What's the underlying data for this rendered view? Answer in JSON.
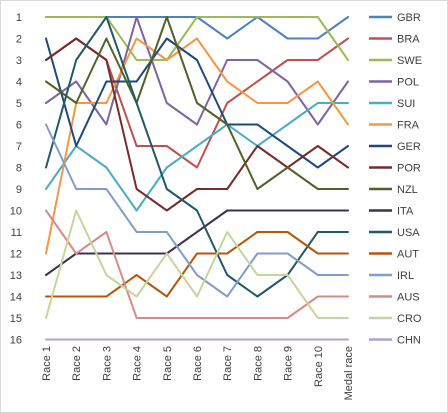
{
  "chart_data": {
    "type": "line",
    "title": "",
    "xlabel": "",
    "ylabel": "",
    "x": [
      "Race 1",
      "Race 2",
      "Race 3",
      "Race 4",
      "Race 5",
      "Race 6",
      "Race 7",
      "Race 8",
      "Race 9",
      "Race 10",
      "Medal race"
    ],
    "ylim": [
      1,
      16
    ],
    "y_ticks": [
      "1",
      "2",
      "3",
      "4",
      "5",
      "6",
      "7",
      "8",
      "9",
      "10",
      "11",
      "12",
      "13",
      "14",
      "15",
      "16"
    ],
    "y_inverted": true,
    "grid": false,
    "legend_position": "right",
    "series": [
      {
        "name": "GBR",
        "color": "#4f81bd",
        "values": [
          1,
          1,
          1,
          1,
          1,
          1,
          2,
          1,
          2,
          2,
          1
        ]
      },
      {
        "name": "BRA",
        "color": "#c0504d",
        "values": [
          3,
          2,
          3,
          7,
          7,
          8,
          5,
          4,
          3,
          3,
          2
        ]
      },
      {
        "name": "SWE",
        "color": "#9bbb59",
        "values": [
          1,
          1,
          1,
          3,
          3,
          1,
          1,
          1,
          1,
          1,
          3
        ]
      },
      {
        "name": "POL",
        "color": "#8064a2",
        "values": [
          5,
          4,
          6,
          1,
          5,
          6,
          3,
          3,
          4,
          6,
          4
        ]
      },
      {
        "name": "SUI",
        "color": "#4bacc6",
        "values": [
          9,
          7,
          8,
          10,
          8,
          7,
          6,
          7,
          6,
          5,
          5
        ]
      },
      {
        "name": "FRA",
        "color": "#f79646",
        "values": [
          12,
          5,
          5,
          2,
          3,
          2,
          4,
          5,
          5,
          4,
          6
        ]
      },
      {
        "name": "GER",
        "color": "#1f497d",
        "values": [
          2,
          7,
          4,
          4,
          2,
          3,
          6,
          6,
          7,
          8,
          7
        ]
      },
      {
        "name": "POR",
        "color": "#772c2a",
        "values": [
          3,
          2,
          3,
          9,
          10,
          9,
          9,
          7,
          8,
          7,
          8
        ]
      },
      {
        "name": "NZL",
        "color": "#4f6228",
        "values": [
          4,
          5,
          2,
          5,
          1,
          5,
          6,
          9,
          8,
          9,
          9
        ]
      },
      {
        "name": "ITA",
        "color": "#3f3151",
        "values": [
          13,
          12,
          12,
          12,
          12,
          11,
          10,
          10,
          10,
          10,
          10
        ]
      },
      {
        "name": "USA",
        "color": "#215968",
        "values": [
          8,
          3,
          1,
          5,
          9,
          10,
          13,
          14,
          13,
          11,
          11
        ]
      },
      {
        "name": "AUT",
        "color": "#b65708",
        "values": [
          14,
          14,
          14,
          13,
          14,
          12,
          12,
          11,
          11,
          12,
          12
        ]
      },
      {
        "name": "IRL",
        "color": "#7f9fc9",
        "values": [
          6,
          9,
          9,
          11,
          11,
          13,
          14,
          12,
          12,
          13,
          13
        ]
      },
      {
        "name": "AUS",
        "color": "#d88a88",
        "values": [
          10,
          12,
          11,
          15,
          15,
          15,
          15,
          15,
          15,
          14,
          14
        ]
      },
      {
        "name": "CRO",
        "color": "#c3d69b",
        "values": [
          15,
          10,
          13,
          14,
          12,
          14,
          11,
          13,
          13,
          15,
          15
        ]
      },
      {
        "name": "CHN",
        "color": "#b3a2c7",
        "values": [
          16,
          16,
          16,
          16,
          16,
          16,
          16,
          16,
          16,
          16,
          16
        ]
      }
    ]
  }
}
